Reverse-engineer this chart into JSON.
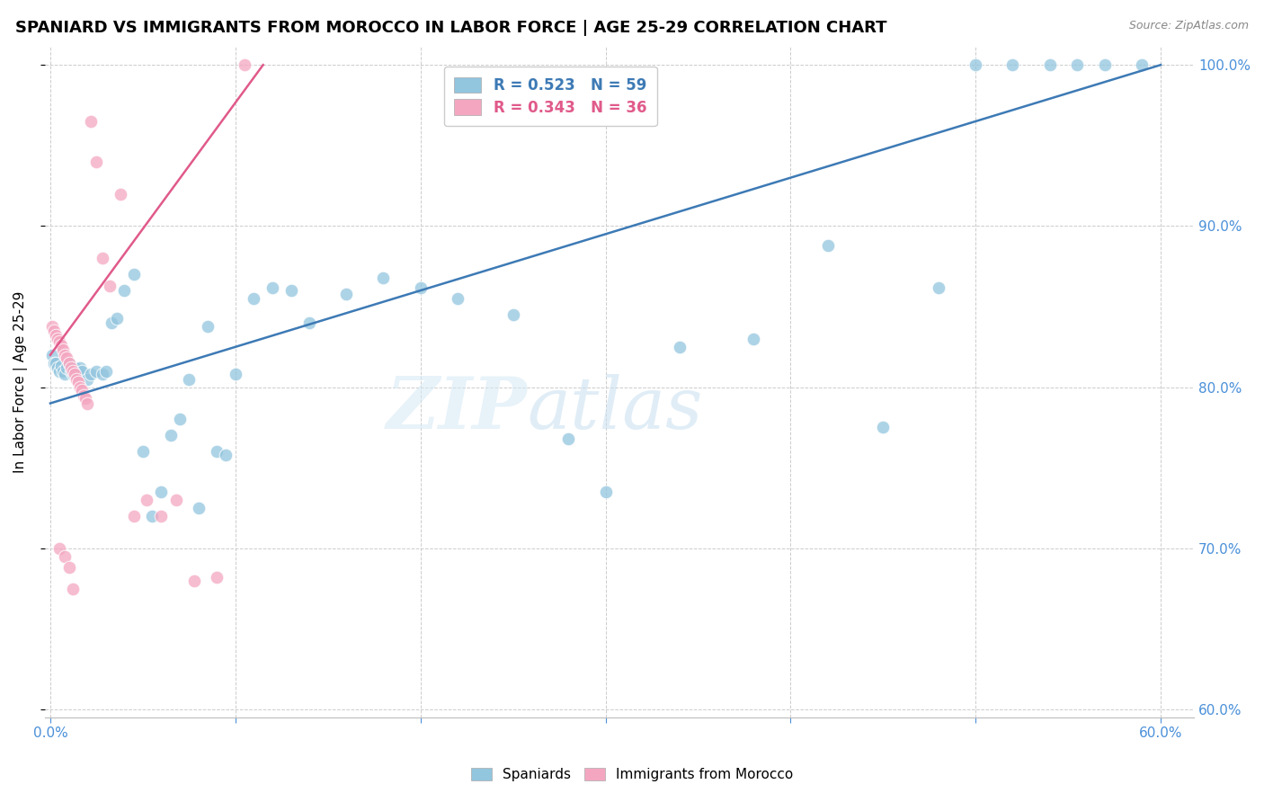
{
  "title": "SPANIARD VS IMMIGRANTS FROM MOROCCO IN LABOR FORCE | AGE 25-29 CORRELATION CHART",
  "source": "Source: ZipAtlas.com",
  "ylabel": "In Labor Force | Age 25-29",
  "x_min": -0.003,
  "x_max": 0.618,
  "y_min": 0.595,
  "y_max": 1.012,
  "blue_color": "#92c5de",
  "pink_color": "#f4a6c0",
  "blue_line_color": "#3d7ab5",
  "pink_line_color": "#e05a8a",
  "R_blue": 0.523,
  "N_blue": 59,
  "R_pink": 0.343,
  "N_pink": 36,
  "blue_line_x0": 0.0,
  "blue_line_y0": 0.79,
  "blue_line_x1": 0.6,
  "blue_line_y1": 1.0,
  "pink_line_x0": 0.0,
  "pink_line_y0": 0.82,
  "pink_line_x1": 0.115,
  "pink_line_y1": 1.0,
  "blue_x": [
    0.001,
    0.002,
    0.003,
    0.004,
    0.005,
    0.006,
    0.007,
    0.008,
    0.009,
    0.01,
    0.011,
    0.012,
    0.013,
    0.014,
    0.015,
    0.016,
    0.017,
    0.02,
    0.022,
    0.025,
    0.028,
    0.03,
    0.033,
    0.036,
    0.04,
    0.045,
    0.05,
    0.055,
    0.06,
    0.065,
    0.07,
    0.075,
    0.08,
    0.085,
    0.09,
    0.095,
    0.1,
    0.11,
    0.12,
    0.13,
    0.14,
    0.16,
    0.18,
    0.2,
    0.22,
    0.25,
    0.28,
    0.3,
    0.34,
    0.38,
    0.42,
    0.45,
    0.48,
    0.5,
    0.52,
    0.54,
    0.555,
    0.57,
    0.59
  ],
  "blue_y": [
    0.82,
    0.815,
    0.815,
    0.812,
    0.81,
    0.813,
    0.81,
    0.808,
    0.812,
    0.815,
    0.81,
    0.808,
    0.812,
    0.81,
    0.808,
    0.812,
    0.81,
    0.805,
    0.808,
    0.81,
    0.808,
    0.81,
    0.84,
    0.843,
    0.86,
    0.87,
    0.76,
    0.72,
    0.735,
    0.77,
    0.78,
    0.805,
    0.725,
    0.838,
    0.76,
    0.758,
    0.808,
    0.855,
    0.862,
    0.86,
    0.84,
    0.858,
    0.868,
    0.862,
    0.855,
    0.845,
    0.768,
    0.735,
    0.825,
    0.83,
    0.888,
    0.775,
    0.862,
    1.0,
    1.0,
    1.0,
    1.0,
    1.0,
    1.0
  ],
  "pink_x": [
    0.001,
    0.002,
    0.003,
    0.004,
    0.005,
    0.006,
    0.007,
    0.008,
    0.009,
    0.01,
    0.011,
    0.012,
    0.013,
    0.014,
    0.015,
    0.016,
    0.017,
    0.018,
    0.019,
    0.02,
    0.022,
    0.025,
    0.028,
    0.032,
    0.038,
    0.045,
    0.052,
    0.06,
    0.068,
    0.078,
    0.09,
    0.105,
    0.005,
    0.008,
    0.01,
    0.012
  ],
  "pink_y": [
    0.838,
    0.835,
    0.832,
    0.83,
    0.828,
    0.826,
    0.823,
    0.82,
    0.818,
    0.815,
    0.812,
    0.81,
    0.808,
    0.805,
    0.803,
    0.8,
    0.798,
    0.795,
    0.793,
    0.79,
    0.965,
    0.94,
    0.88,
    0.863,
    0.92,
    0.72,
    0.73,
    0.72,
    0.73,
    0.68,
    0.682,
    1.0,
    0.7,
    0.695,
    0.688,
    0.675
  ]
}
